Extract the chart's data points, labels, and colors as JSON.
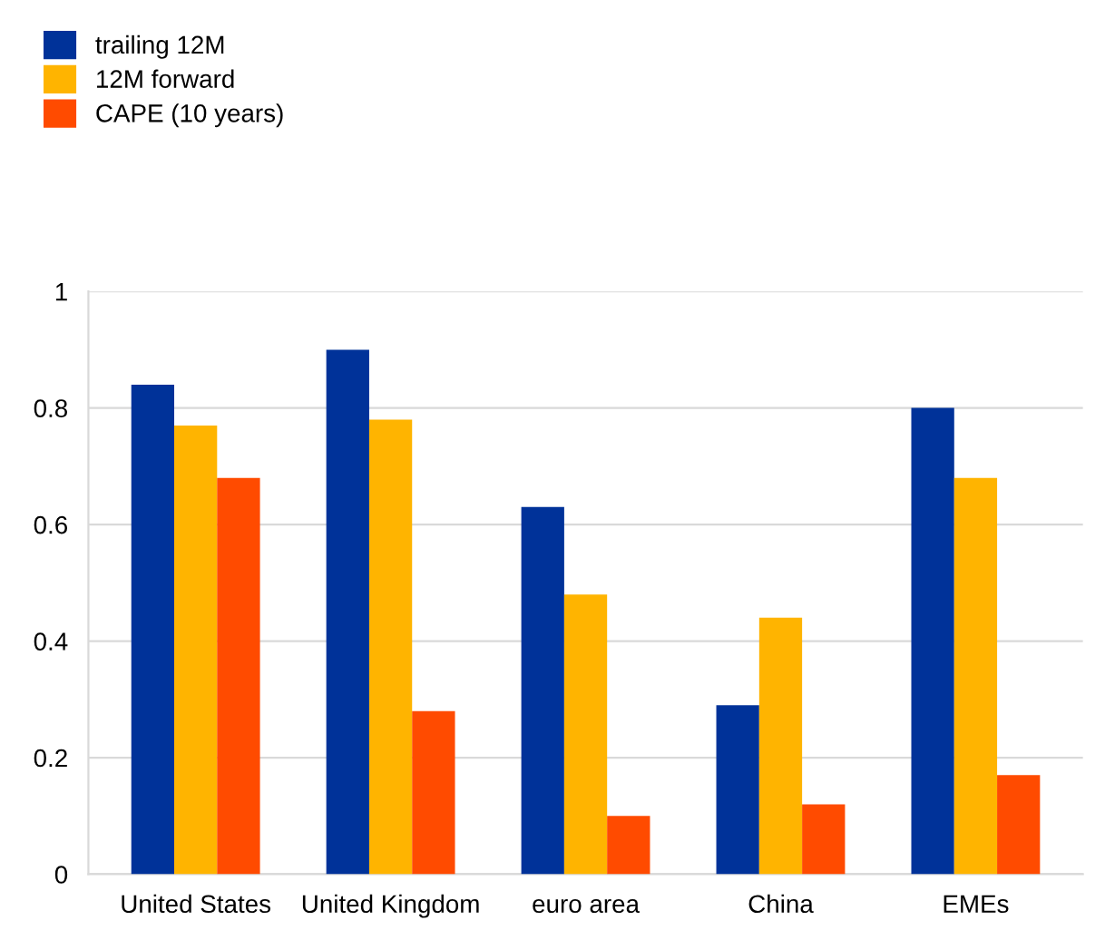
{
  "chart_data": {
    "type": "bar",
    "categories": [
      "United States",
      "United Kingdom",
      "euro area",
      "China",
      "EMEs"
    ],
    "series": [
      {
        "name": "trailing 12M",
        "color": "#003299",
        "values": [
          0.84,
          0.9,
          0.63,
          0.29,
          0.8
        ]
      },
      {
        "name": "12M forward",
        "color": "#ffb400",
        "values": [
          0.77,
          0.78,
          0.48,
          0.44,
          0.68
        ]
      },
      {
        "name": "CAPE (10 years)",
        "color": "#ff4b00",
        "values": [
          0.68,
          0.28,
          0.1,
          0.12,
          0.17
        ]
      }
    ],
    "ylim": [
      0,
      1
    ],
    "yticks": [
      0,
      0.2,
      0.4,
      0.6,
      0.8,
      1
    ],
    "grid": "y",
    "legend": "top left"
  }
}
